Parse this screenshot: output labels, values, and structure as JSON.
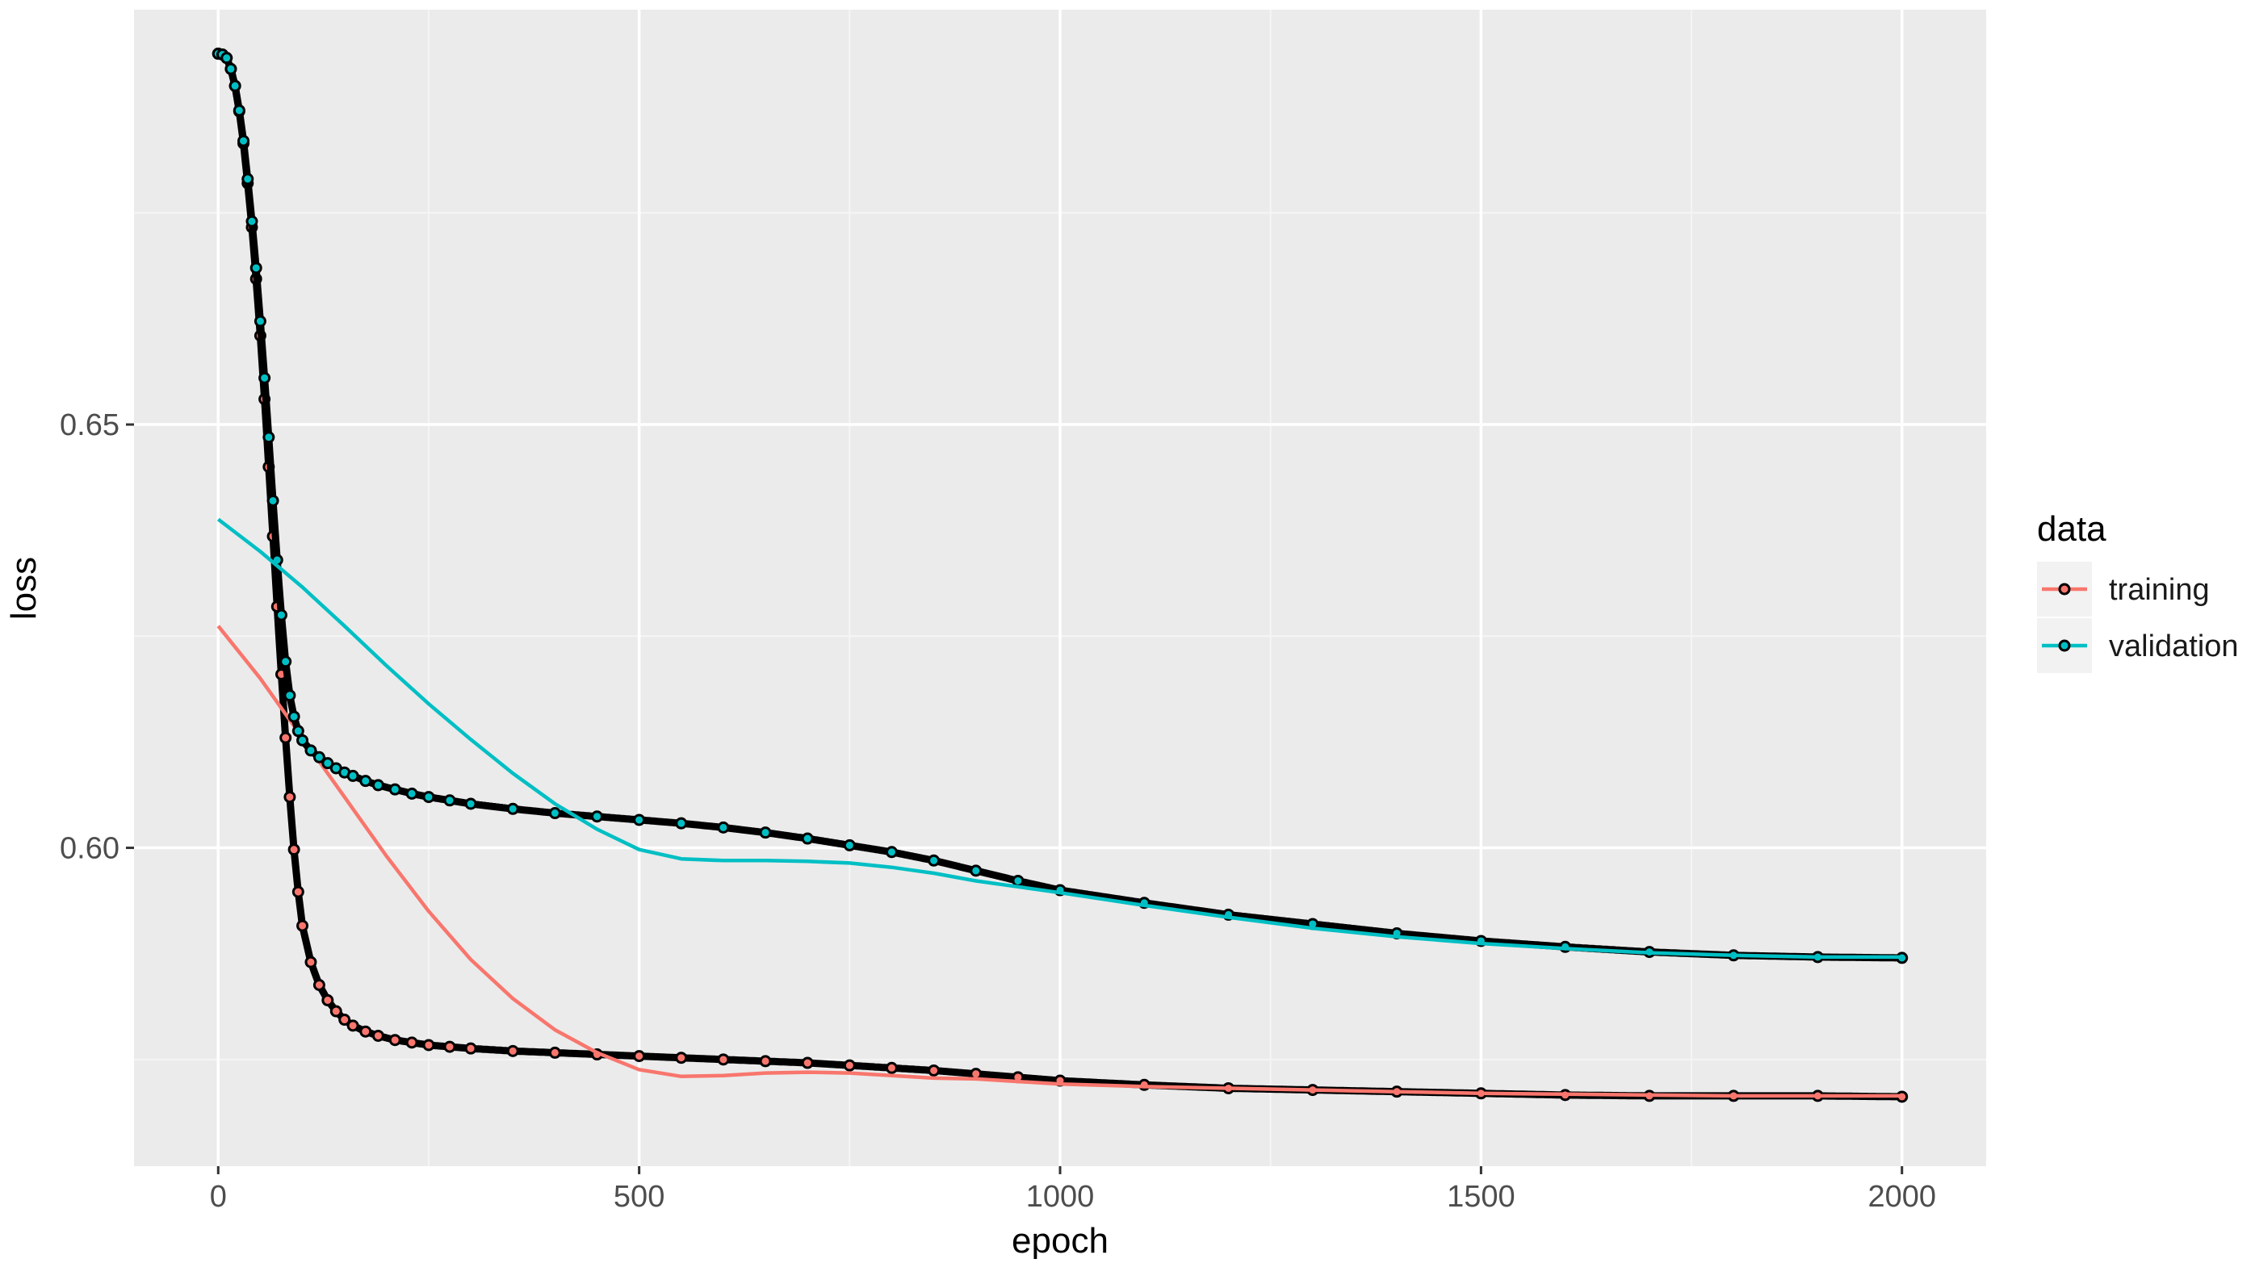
{
  "chart_data": {
    "type": "line",
    "title": "",
    "xlabel": "epoch",
    "ylabel": "loss",
    "xlim": [
      -100,
      2100
    ],
    "ylim": [
      0.5624,
      0.699
    ],
    "x_ticks": [
      0,
      500,
      1000,
      1500,
      2000
    ],
    "x_tick_labels": [
      "0",
      "500",
      "1000",
      "1500",
      "2000"
    ],
    "y_ticks": [
      0.6,
      0.65
    ],
    "y_tick_labels": [
      "0.60",
      "0.65"
    ],
    "grid": true,
    "legend": {
      "title": "data",
      "placement": "right",
      "entries": [
        "training",
        "validation"
      ]
    },
    "series": [
      {
        "name": "training",
        "color": "#F8766D",
        "points": {
          "x": [
            0,
            5,
            10,
            15,
            20,
            25,
            30,
            35,
            40,
            45,
            50,
            55,
            60,
            65,
            70,
            75,
            80,
            85,
            90,
            95,
            100,
            110,
            120,
            130,
            140,
            150,
            160,
            175,
            190,
            210,
            230,
            250,
            275,
            300,
            350,
            400,
            450,
            500,
            550,
            600,
            650,
            700,
            750,
            800,
            850,
            900,
            950,
            1000,
            1100,
            1200,
            1300,
            1400,
            1500,
            1600,
            1700,
            1800,
            1900,
            2000
          ],
          "y": [
            0.6938,
            0.6937,
            0.6933,
            0.692,
            0.69,
            0.687,
            0.6832,
            0.6785,
            0.6733,
            0.6672,
            0.6605,
            0.653,
            0.645,
            0.6368,
            0.6285,
            0.6205,
            0.613,
            0.606,
            0.5998,
            0.5948,
            0.5908,
            0.5865,
            0.5838,
            0.582,
            0.5807,
            0.5797,
            0.579,
            0.5783,
            0.5778,
            0.5773,
            0.577,
            0.5767,
            0.5765,
            0.5763,
            0.576,
            0.5758,
            0.5756,
            0.5754,
            0.5752,
            0.575,
            0.5748,
            0.5746,
            0.5743,
            0.574,
            0.5737,
            0.5733,
            0.5729,
            0.5725,
            0.572,
            0.5716,
            0.5714,
            0.5712,
            0.571,
            0.5708,
            0.5707,
            0.5707,
            0.5707,
            0.5706
          ]
        },
        "smooth": {
          "x": [
            0,
            50,
            100,
            150,
            200,
            250,
            300,
            350,
            400,
            450,
            500,
            550,
            600,
            650,
            700,
            750,
            800,
            850,
            900,
            950,
            1000,
            1100,
            1200,
            1300,
            1400,
            1500,
            1600,
            1700,
            1800,
            1900,
            2000
          ],
          "y": [
            0.6262,
            0.62,
            0.613,
            0.606,
            0.599,
            0.5925,
            0.5868,
            0.5822,
            0.5785,
            0.5758,
            0.5738,
            0.573,
            0.5731,
            0.5734,
            0.5735,
            0.5734,
            0.5731,
            0.5728,
            0.5727,
            0.5724,
            0.5721,
            0.5718,
            0.5716,
            0.5714,
            0.5712,
            0.571,
            0.5709,
            0.5708,
            0.5707,
            0.5707,
            0.5707
          ]
        }
      },
      {
        "name": "validation",
        "color": "#00BFC4",
        "points": {
          "x": [
            0,
            5,
            10,
            15,
            20,
            25,
            30,
            35,
            40,
            45,
            50,
            55,
            60,
            65,
            70,
            75,
            80,
            85,
            90,
            95,
            100,
            110,
            120,
            130,
            140,
            150,
            160,
            175,
            190,
            210,
            230,
            250,
            275,
            300,
            350,
            400,
            450,
            500,
            550,
            600,
            650,
            700,
            750,
            800,
            850,
            900,
            950,
            1000,
            1100,
            1200,
            1300,
            1400,
            1500,
            1600,
            1700,
            1800,
            1900,
            2000
          ],
          "y": [
            0.6938,
            0.6937,
            0.6933,
            0.692,
            0.69,
            0.6871,
            0.6835,
            0.679,
            0.674,
            0.6685,
            0.6622,
            0.6555,
            0.6485,
            0.641,
            0.634,
            0.6275,
            0.622,
            0.618,
            0.6155,
            0.6138,
            0.6127,
            0.6115,
            0.6107,
            0.61,
            0.6094,
            0.6089,
            0.6085,
            0.6079,
            0.6074,
            0.6069,
            0.6064,
            0.606,
            0.6056,
            0.6052,
            0.6046,
            0.6041,
            0.6037,
            0.6033,
            0.6029,
            0.6024,
            0.6018,
            0.6011,
            0.6003,
            0.5995,
            0.5985,
            0.5973,
            0.5961,
            0.595,
            0.5935,
            0.5921,
            0.591,
            0.5899,
            0.589,
            0.5883,
            0.5877,
            0.5873,
            0.5871,
            0.587
          ]
        },
        "smooth": {
          "x": [
            0,
            50,
            100,
            150,
            200,
            250,
            300,
            350,
            400,
            450,
            500,
            550,
            600,
            650,
            700,
            750,
            800,
            850,
            900,
            950,
            1000,
            1100,
            1200,
            1300,
            1400,
            1500,
            1600,
            1700,
            1800,
            1900,
            2000
          ],
          "y": [
            0.6388,
            0.635,
            0.6308,
            0.6262,
            0.6215,
            0.617,
            0.6128,
            0.6088,
            0.6052,
            0.6022,
            0.5998,
            0.5987,
            0.5985,
            0.5985,
            0.5984,
            0.5982,
            0.5977,
            0.597,
            0.5961,
            0.5954,
            0.5947,
            0.5932,
            0.5918,
            0.5905,
            0.5895,
            0.5887,
            0.5881,
            0.5876,
            0.5873,
            0.5871,
            0.5871
          ]
        }
      }
    ]
  }
}
